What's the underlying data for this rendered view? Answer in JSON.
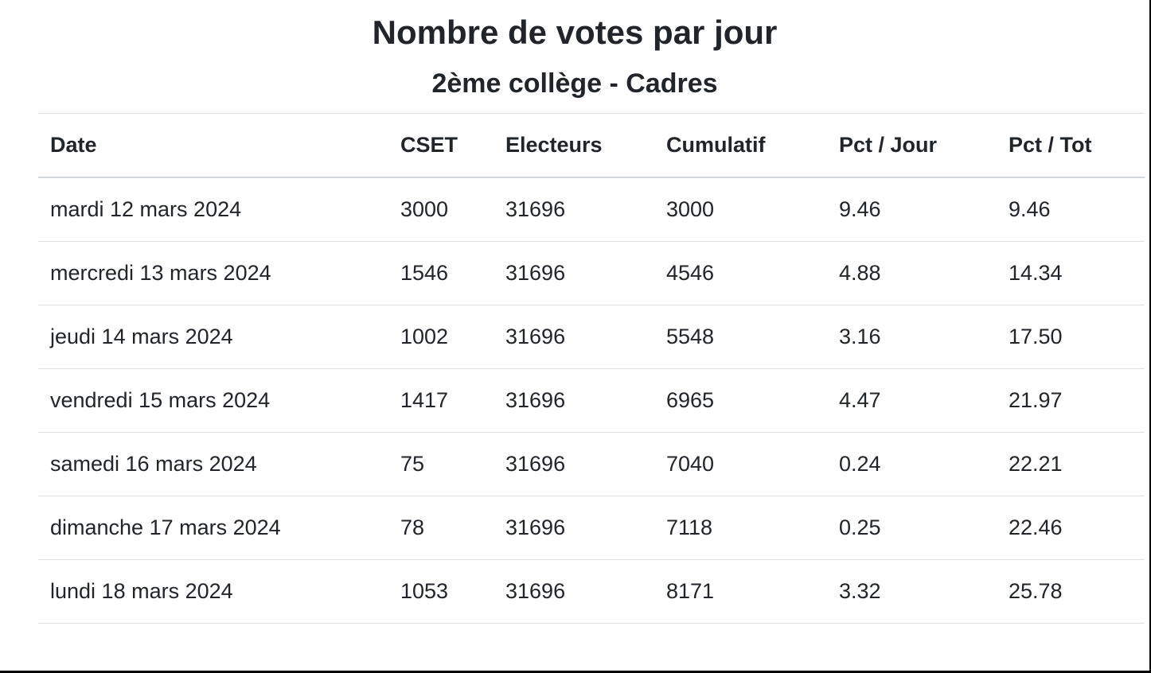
{
  "page": {
    "title": "Nombre de votes par jour",
    "subtitle": "2ème collège - Cadres"
  },
  "table": {
    "columns": [
      "Date",
      "CSET",
      "Electeurs",
      "Cumulatif",
      "Pct / Jour",
      "Pct / Tot"
    ],
    "rows": [
      [
        "mardi 12 mars 2024",
        "3000",
        "31696",
        "3000",
        "9.46",
        "9.46"
      ],
      [
        "mercredi 13 mars 2024",
        "1546",
        "31696",
        "4546",
        "4.88",
        "14.34"
      ],
      [
        "jeudi 14 mars 2024",
        "1002",
        "31696",
        "5548",
        "3.16",
        "17.50"
      ],
      [
        "vendredi 15 mars 2024",
        "1417",
        "31696",
        "6965",
        "4.47",
        "21.97"
      ],
      [
        "samedi 16 mars 2024",
        "75",
        "31696",
        "7040",
        "0.24",
        "22.21"
      ],
      [
        "dimanche 17 mars 2024",
        "78",
        "31696",
        "7118",
        "0.25",
        "22.46"
      ],
      [
        "lundi 18 mars 2024",
        "1053",
        "31696",
        "8171",
        "3.32",
        "25.78"
      ]
    ]
  },
  "colors": {
    "text": "#212529",
    "divider": "#dee2e6",
    "frame": "#000000"
  }
}
